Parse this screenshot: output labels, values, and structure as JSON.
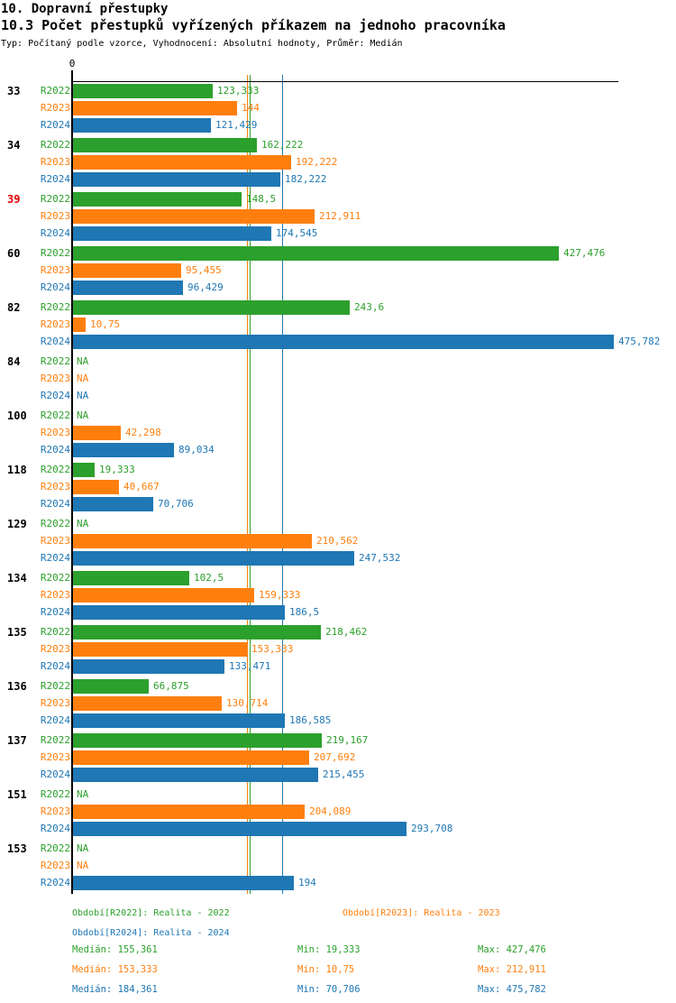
{
  "header": {
    "title": "10. Dopravní přestupky",
    "subtitle": "10.3 Počet přestupků vyřízených příkazem na jednoho pracovníka",
    "meta": "Typ: Počítaný podle vzorce, Vyhodnocení: Absolutní hodnoty, Průměr: Medián"
  },
  "colors": {
    "r2022": "#2ca02c",
    "r2023": "#ff7f0e",
    "r2024": "#1f77b4",
    "highlight": "#e00000",
    "axis": "#000000"
  },
  "chart_data": {
    "type": "bar",
    "orientation": "horizontal",
    "x_origin_label": "0",
    "na_label": "NA",
    "axis_range": [
      0,
      480
    ],
    "series_names": [
      "R2022",
      "R2023",
      "R2024"
    ],
    "series_keys": [
      "r2022",
      "r2023",
      "r2024"
    ],
    "categories": [
      "33",
      "34",
      "39",
      "60",
      "82",
      "84",
      "100",
      "118",
      "129",
      "134",
      "135",
      "136",
      "137",
      "151",
      "153"
    ],
    "highlighted_categories": [
      "39"
    ],
    "groups": [
      {
        "category": "33",
        "values": [
          123.333,
          144,
          121.429
        ],
        "value_labels": [
          "123,333",
          "144",
          "121,429"
        ]
      },
      {
        "category": "34",
        "values": [
          162.222,
          192.222,
          182.222
        ],
        "value_labels": [
          "162,222",
          "192,222",
          "182,222"
        ]
      },
      {
        "category": "39",
        "values": [
          148.5,
          212.911,
          174.545
        ],
        "value_labels": [
          "148,5",
          "212,911",
          "174,545"
        ]
      },
      {
        "category": "60",
        "values": [
          427.476,
          95.455,
          96.429
        ],
        "value_labels": [
          "427,476",
          "95,455",
          "96,429"
        ]
      },
      {
        "category": "82",
        "values": [
          243.6,
          10.75,
          475.782
        ],
        "value_labels": [
          "243,6",
          "10,75",
          "475,782"
        ]
      },
      {
        "category": "84",
        "values": [
          null,
          null,
          null
        ],
        "value_labels": [
          "NA",
          "NA",
          "NA"
        ]
      },
      {
        "category": "100",
        "values": [
          null,
          42.298,
          89.034
        ],
        "value_labels": [
          "NA",
          "42,298",
          "89,034"
        ]
      },
      {
        "category": "118",
        "values": [
          19.333,
          40.667,
          70.706
        ],
        "value_labels": [
          "19,333",
          "40,667",
          "70,706"
        ]
      },
      {
        "category": "129",
        "values": [
          null,
          210.562,
          247.532
        ],
        "value_labels": [
          "NA",
          "210,562",
          "247,532"
        ]
      },
      {
        "category": "134",
        "values": [
          102.5,
          159.333,
          186.5
        ],
        "value_labels": [
          "102,5",
          "159,333",
          "186,5"
        ]
      },
      {
        "category": "135",
        "values": [
          218.462,
          153.333,
          133.471
        ],
        "value_labels": [
          "218,462",
          "153,333",
          "133,471"
        ]
      },
      {
        "category": "136",
        "values": [
          66.875,
          130.714,
          186.585
        ],
        "value_labels": [
          "66,875",
          "130,714",
          "186,585"
        ]
      },
      {
        "category": "137",
        "values": [
          219.167,
          207.692,
          215.455
        ],
        "value_labels": [
          "219,167",
          "207,692",
          "215,455"
        ]
      },
      {
        "category": "151",
        "values": [
          null,
          204.089,
          293.708
        ],
        "value_labels": [
          "NA",
          "204,089",
          "293,708"
        ]
      },
      {
        "category": "153",
        "values": [
          null,
          null,
          194
        ],
        "value_labels": [
          "NA",
          "NA",
          "194"
        ]
      }
    ],
    "medians": {
      "r2022": 155.361,
      "r2023": 153.333,
      "r2024": 184.361
    }
  },
  "legend": [
    {
      "label": "Období[R2022]: Realita - 2022"
    },
    {
      "label": "Období[R2023]: Realita - 2023"
    },
    {
      "label": "Období[R2024]: Realita - 2024"
    }
  ],
  "stats": [
    {
      "median": "Medián: 155,361",
      "min": "Min: 19,333",
      "max": "Max: 427,476"
    },
    {
      "median": "Medián: 153,333",
      "min": "Min: 10,75",
      "max": "Max: 212,911"
    },
    {
      "median": "Medián: 184,361",
      "min": "Min: 70,706",
      "max": "Max: 475,782"
    }
  ]
}
